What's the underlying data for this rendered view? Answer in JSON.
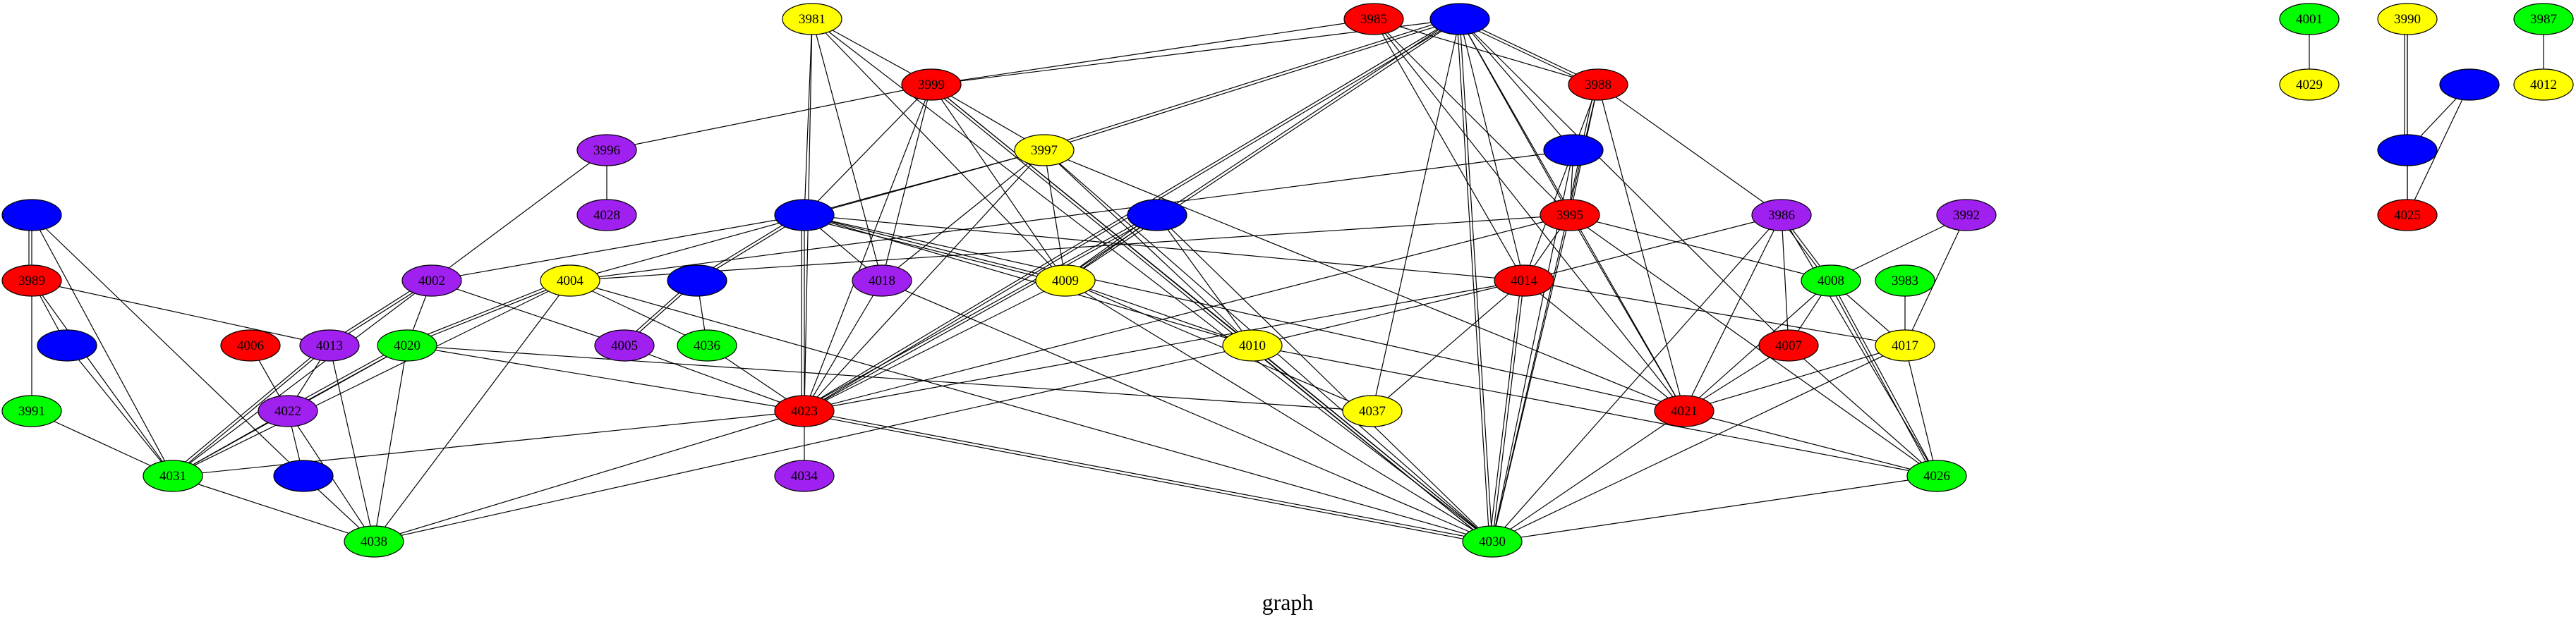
{
  "caption": "graph",
  "colors": {
    "red": "#ff0000",
    "blue": "#0000ff",
    "yellow": "#ffff00",
    "green": "#00ff00",
    "purple": "#a020f0",
    "edge": "#000000",
    "outline": "#000000"
  },
  "nodes": [
    {
      "id": "3981",
      "label": "3981",
      "color": "yellow"
    },
    {
      "id": "3985",
      "label": "3985",
      "color": "red"
    },
    {
      "id": "n_top_blue",
      "label": "",
      "color": "blue"
    },
    {
      "id": "4001",
      "label": "4001",
      "color": "green"
    },
    {
      "id": "3990",
      "label": "3990",
      "color": "yellow"
    },
    {
      "id": "3987",
      "label": "3987",
      "color": "green"
    },
    {
      "id": "3999",
      "label": "3999",
      "color": "red"
    },
    {
      "id": "3988",
      "label": "3988",
      "color": "red"
    },
    {
      "id": "4029",
      "label": "4029",
      "color": "yellow"
    },
    {
      "id": "n_blue_ur",
      "label": "",
      "color": "blue"
    },
    {
      "id": "4012",
      "label": "4012",
      "color": "yellow"
    },
    {
      "id": "3996",
      "label": "3996",
      "color": "purple"
    },
    {
      "id": "3997",
      "label": "3997",
      "color": "yellow"
    },
    {
      "id": "n_blue_mr",
      "label": "",
      "color": "blue"
    },
    {
      "id": "n_blue_rr",
      "label": "",
      "color": "blue"
    },
    {
      "id": "4028",
      "label": "4028",
      "color": "purple"
    },
    {
      "id": "n_blue_l",
      "label": "",
      "color": "blue"
    },
    {
      "id": "n_blue_c1",
      "label": "",
      "color": "blue"
    },
    {
      "id": "n_blue_c2",
      "label": "",
      "color": "blue"
    },
    {
      "id": "3995",
      "label": "3995",
      "color": "red"
    },
    {
      "id": "3986",
      "label": "3986",
      "color": "purple"
    },
    {
      "id": "3992",
      "label": "3992",
      "color": "purple"
    },
    {
      "id": "4025",
      "label": "4025",
      "color": "red"
    },
    {
      "id": "3989",
      "label": "3989",
      "color": "red"
    },
    {
      "id": "4002",
      "label": "4002",
      "color": "purple"
    },
    {
      "id": "4004",
      "label": "4004",
      "color": "yellow"
    },
    {
      "id": "n_blue_m",
      "label": "",
      "color": "blue"
    },
    {
      "id": "4018",
      "label": "4018",
      "color": "purple"
    },
    {
      "id": "4009",
      "label": "4009",
      "color": "yellow"
    },
    {
      "id": "4014",
      "label": "4014",
      "color": "red"
    },
    {
      "id": "4008",
      "label": "4008",
      "color": "green"
    },
    {
      "id": "3983",
      "label": "3983",
      "color": "green"
    },
    {
      "id": "n_blue_l2",
      "label": "",
      "color": "blue"
    },
    {
      "id": "4006",
      "label": "4006",
      "color": "red"
    },
    {
      "id": "4013",
      "label": "4013",
      "color": "purple"
    },
    {
      "id": "4020",
      "label": "4020",
      "color": "green"
    },
    {
      "id": "4005",
      "label": "4005",
      "color": "purple"
    },
    {
      "id": "4036",
      "label": "4036",
      "color": "green"
    },
    {
      "id": "4010",
      "label": "4010",
      "color": "yellow"
    },
    {
      "id": "4007",
      "label": "4007",
      "color": "red"
    },
    {
      "id": "4017",
      "label": "4017",
      "color": "yellow"
    },
    {
      "id": "3991",
      "label": "3991",
      "color": "green"
    },
    {
      "id": "4022",
      "label": "4022",
      "color": "purple"
    },
    {
      "id": "4023",
      "label": "4023",
      "color": "red"
    },
    {
      "id": "4037",
      "label": "4037",
      "color": "yellow"
    },
    {
      "id": "4021",
      "label": "4021",
      "color": "red"
    },
    {
      "id": "4031",
      "label": "4031",
      "color": "green"
    },
    {
      "id": "n_blue_bl",
      "label": "",
      "color": "blue"
    },
    {
      "id": "4034",
      "label": "4034",
      "color": "purple"
    },
    {
      "id": "4026",
      "label": "4026",
      "color": "green"
    },
    {
      "id": "4038",
      "label": "4038",
      "color": "green"
    },
    {
      "id": "4030",
      "label": "4030",
      "color": "green"
    }
  ],
  "edges": [
    [
      "3981",
      "3999"
    ],
    [
      "3981",
      "n_blue_c1"
    ],
    [
      "3981",
      "4023"
    ],
    [
      "3981",
      "4018"
    ],
    [
      "3981",
      "4009"
    ],
    [
      "3981",
      "4030"
    ],
    [
      "3999",
      "3996"
    ],
    [
      "3999",
      "n_top_blue"
    ],
    [
      "3999",
      "3997"
    ],
    [
      "3999",
      "n_blue_c1"
    ],
    [
      "3999",
      "4018"
    ],
    [
      "3999",
      "4023"
    ],
    [
      "3999",
      "4009"
    ],
    [
      "3999",
      "4010"
    ],
    [
      "3999",
      "4030"
    ],
    [
      "3999",
      "4030"
    ],
    [
      "3985",
      "3988"
    ],
    [
      "3985",
      "3995"
    ],
    [
      "3985",
      "4014"
    ],
    [
      "3985",
      "4021"
    ],
    [
      "3985",
      "3999"
    ],
    [
      "n_top_blue",
      "3997"
    ],
    [
      "n_top_blue",
      "3997"
    ],
    [
      "n_top_blue",
      "3988"
    ],
    [
      "n_top_blue",
      "3988"
    ],
    [
      "n_top_blue",
      "n_blue_mr"
    ],
    [
      "n_top_blue",
      "3995"
    ],
    [
      "n_top_blue",
      "4014"
    ],
    [
      "n_top_blue",
      "4030"
    ],
    [
      "n_top_blue",
      "4030"
    ],
    [
      "n_top_blue",
      "4037"
    ],
    [
      "n_top_blue",
      "4009"
    ],
    [
      "n_top_blue",
      "4009"
    ],
    [
      "n_top_blue",
      "4023"
    ],
    [
      "n_top_blue",
      "4023"
    ],
    [
      "n_top_blue",
      "4021"
    ],
    [
      "n_top_blue",
      "4007"
    ],
    [
      "3988",
      "n_blue_mr"
    ],
    [
      "3988",
      "3995"
    ],
    [
      "3988",
      "3995"
    ],
    [
      "3988",
      "3986"
    ],
    [
      "3988",
      "4021"
    ],
    [
      "3988",
      "4030"
    ],
    [
      "4001",
      "4029"
    ],
    [
      "3990",
      "n_blue_rr"
    ],
    [
      "3990",
      "n_blue_rr"
    ],
    [
      "3990",
      "4025"
    ],
    [
      "n_blue_ur",
      "n_blue_rr"
    ],
    [
      "n_blue_ur",
      "4025"
    ],
    [
      "n_blue_rr",
      "4025"
    ],
    [
      "3987",
      "4012"
    ],
    [
      "3996",
      "4028"
    ],
    [
      "3996",
      "4002"
    ],
    [
      "3997",
      "4009"
    ],
    [
      "3997",
      "4010"
    ],
    [
      "3997",
      "4004"
    ],
    [
      "3997",
      "n_blue_c1"
    ],
    [
      "3997",
      "4023"
    ],
    [
      "3997",
      "4021"
    ],
    [
      "3997",
      "4030"
    ],
    [
      "3997",
      "4018"
    ],
    [
      "n_blue_mr",
      "3995"
    ],
    [
      "n_blue_mr",
      "4004"
    ],
    [
      "n_blue_mr",
      "4014"
    ],
    [
      "n_blue_mr",
      "4030"
    ],
    [
      "n_blue_l",
      "3989"
    ],
    [
      "n_blue_l",
      "3989"
    ],
    [
      "n_blue_l",
      "4031"
    ],
    [
      "n_blue_l",
      "n_blue_bl"
    ],
    [
      "n_blue_c1",
      "4002"
    ],
    [
      "n_blue_c1",
      "n_blue_m"
    ],
    [
      "n_blue_c1",
      "n_blue_m"
    ],
    [
      "n_blue_c1",
      "4018"
    ],
    [
      "n_blue_c1",
      "4009"
    ],
    [
      "n_blue_c1",
      "4009"
    ],
    [
      "n_blue_c1",
      "4014"
    ],
    [
      "n_blue_c1",
      "4023"
    ],
    [
      "n_blue_c1",
      "4023"
    ],
    [
      "n_blue_c1",
      "4021"
    ],
    [
      "n_blue_c1",
      "4010"
    ],
    [
      "n_blue_c2",
      "4009"
    ],
    [
      "n_blue_c2",
      "4009"
    ],
    [
      "n_blue_c2",
      "4023"
    ],
    [
      "n_blue_c2",
      "4023"
    ],
    [
      "n_blue_c2",
      "4030"
    ],
    [
      "n_blue_c2",
      "4010"
    ],
    [
      "3995",
      "4004"
    ],
    [
      "3995",
      "4014"
    ],
    [
      "3995",
      "4023"
    ],
    [
      "3995",
      "4021"
    ],
    [
      "3995",
      "4026"
    ],
    [
      "3995",
      "4030"
    ],
    [
      "3995",
      "4008"
    ],
    [
      "3986",
      "4014"
    ],
    [
      "3986",
      "4008"
    ],
    [
      "3986",
      "4008"
    ],
    [
      "3986",
      "4007"
    ],
    [
      "3986",
      "4021"
    ],
    [
      "3986",
      "4026"
    ],
    [
      "3986",
      "4030"
    ],
    [
      "3992",
      "4008"
    ],
    [
      "3992",
      "4017"
    ],
    [
      "3989",
      "4013"
    ],
    [
      "3989",
      "n_blue_l2"
    ],
    [
      "3989",
      "3991"
    ],
    [
      "3989",
      "4031"
    ],
    [
      "4002",
      "4013"
    ],
    [
      "4002",
      "4013"
    ],
    [
      "4002",
      "4020"
    ],
    [
      "4002",
      "4005"
    ],
    [
      "4002",
      "4031"
    ],
    [
      "4004",
      "4020"
    ],
    [
      "4004",
      "4020"
    ],
    [
      "4004",
      "4036"
    ],
    [
      "4004",
      "4031"
    ],
    [
      "4004",
      "4038"
    ],
    [
      "4004",
      "4030"
    ],
    [
      "n_blue_m",
      "4005"
    ],
    [
      "n_blue_m",
      "4005"
    ],
    [
      "n_blue_m",
      "4036"
    ],
    [
      "4018",
      "4023"
    ],
    [
      "4018",
      "4030"
    ],
    [
      "4009",
      "4010"
    ],
    [
      "4009",
      "4023"
    ],
    [
      "4009",
      "4030"
    ],
    [
      "4009",
      "4037"
    ],
    [
      "4014",
      "4017"
    ],
    [
      "4014",
      "4023"
    ],
    [
      "4014",
      "4021"
    ],
    [
      "4014",
      "4037"
    ],
    [
      "4014",
      "4010"
    ],
    [
      "4014",
      "4030"
    ],
    [
      "4014",
      "4030"
    ],
    [
      "4008",
      "4017"
    ],
    [
      "4008",
      "4021"
    ],
    [
      "4008",
      "4026"
    ],
    [
      "4008",
      "4026"
    ],
    [
      "4008",
      "4007"
    ],
    [
      "3983",
      "4017"
    ],
    [
      "n_blue_l2",
      "4031"
    ],
    [
      "4006",
      "4022"
    ],
    [
      "4013",
      "4031"
    ],
    [
      "4013",
      "4031"
    ],
    [
      "4013",
      "4038"
    ],
    [
      "4013",
      "4022"
    ],
    [
      "4020",
      "4022"
    ],
    [
      "4020",
      "4022"
    ],
    [
      "4020",
      "4031"
    ],
    [
      "4020",
      "4038"
    ],
    [
      "4020",
      "4023"
    ],
    [
      "4020",
      "4037"
    ],
    [
      "4005",
      "4023"
    ],
    [
      "4036",
      "4023"
    ],
    [
      "4010",
      "4038"
    ],
    [
      "4010",
      "4026"
    ],
    [
      "4010",
      "4030"
    ],
    [
      "4010",
      "4030"
    ],
    [
      "4007",
      "4026"
    ],
    [
      "4007",
      "4021"
    ],
    [
      "4017",
      "4021"
    ],
    [
      "4017",
      "4026"
    ],
    [
      "4017",
      "4030"
    ],
    [
      "3991",
      "4031"
    ],
    [
      "4022",
      "n_blue_bl"
    ],
    [
      "4022",
      "4031"
    ],
    [
      "4022",
      "4038"
    ],
    [
      "4023",
      "4031"
    ],
    [
      "4023",
      "4034"
    ],
    [
      "4023",
      "4038"
    ],
    [
      "4023",
      "4030"
    ],
    [
      "4023",
      "4030"
    ],
    [
      "4021",
      "4030"
    ],
    [
      "4021",
      "4026"
    ],
    [
      "4031",
      "4038"
    ],
    [
      "n_blue_bl",
      "4038"
    ],
    [
      "4026",
      "4030"
    ]
  ]
}
